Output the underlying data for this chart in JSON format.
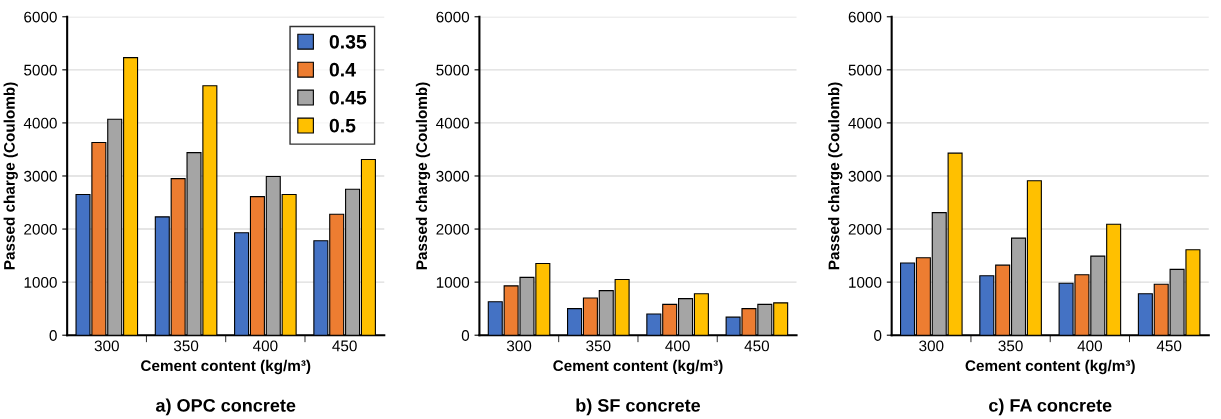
{
  "chart_data": [
    {
      "type": "bar",
      "title": "a) OPC concrete",
      "xlabel": "Cement content (kg/m³)",
      "ylabel": "Passed charge (Coulomb)",
      "categories": [
        "300",
        "350",
        "400",
        "450"
      ],
      "ylim": [
        0,
        6000
      ],
      "yticks": [
        0,
        1000,
        2000,
        3000,
        4000,
        5000,
        6000
      ],
      "grid": "y",
      "legend": "top right",
      "series": [
        {
          "name": "0.35",
          "color": "#4472c4",
          "values": [
            2650,
            2230,
            1930,
            1780
          ]
        },
        {
          "name": "0.4",
          "color": "#ed7d31",
          "values": [
            3630,
            2950,
            2610,
            2280
          ]
        },
        {
          "name": "0.45",
          "color": "#a5a5a5",
          "values": [
            4070,
            3440,
            2990,
            2750
          ]
        },
        {
          "name": "0.5",
          "color": "#ffc000",
          "values": [
            5230,
            4700,
            2650,
            3310
          ]
        }
      ]
    },
    {
      "type": "bar",
      "title": "b) SF concrete",
      "xlabel": "Cement content (kg/m³)",
      "ylabel": "Passed charge (Coulomb)",
      "categories": [
        "300",
        "350",
        "400",
        "450"
      ],
      "ylim": [
        0,
        6000
      ],
      "yticks": [
        0,
        1000,
        2000,
        3000,
        4000,
        5000,
        6000
      ],
      "grid": "y",
      "series": [
        {
          "color": "#4472c4",
          "values": [
            630,
            500,
            400,
            340
          ]
        },
        {
          "color": "#ed7d31",
          "values": [
            930,
            700,
            580,
            500
          ]
        },
        {
          "color": "#a5a5a5",
          "values": [
            1090,
            840,
            690,
            580
          ]
        },
        {
          "color": "#ffc000",
          "values": [
            1350,
            1050,
            780,
            610
          ]
        }
      ]
    },
    {
      "type": "bar",
      "title": "c) FA concrete",
      "xlabel": "Cement content (kg/m³)",
      "ylabel": "Passed charge (Coulomb)",
      "categories": [
        "300",
        "350",
        "400",
        "450"
      ],
      "ylim": [
        0,
        6000
      ],
      "yticks": [
        0,
        1000,
        2000,
        3000,
        4000,
        5000,
        6000
      ],
      "grid": "y",
      "series": [
        {
          "color": "#4472c4",
          "values": [
            1360,
            1120,
            980,
            780
          ]
        },
        {
          "color": "#ed7d31",
          "values": [
            1460,
            1320,
            1140,
            960
          ]
        },
        {
          "color": "#a5a5a5",
          "values": [
            2310,
            1830,
            1490,
            1240
          ]
        },
        {
          "color": "#ffc000",
          "values": [
            3430,
            2910,
            2090,
            1610
          ]
        }
      ]
    }
  ]
}
